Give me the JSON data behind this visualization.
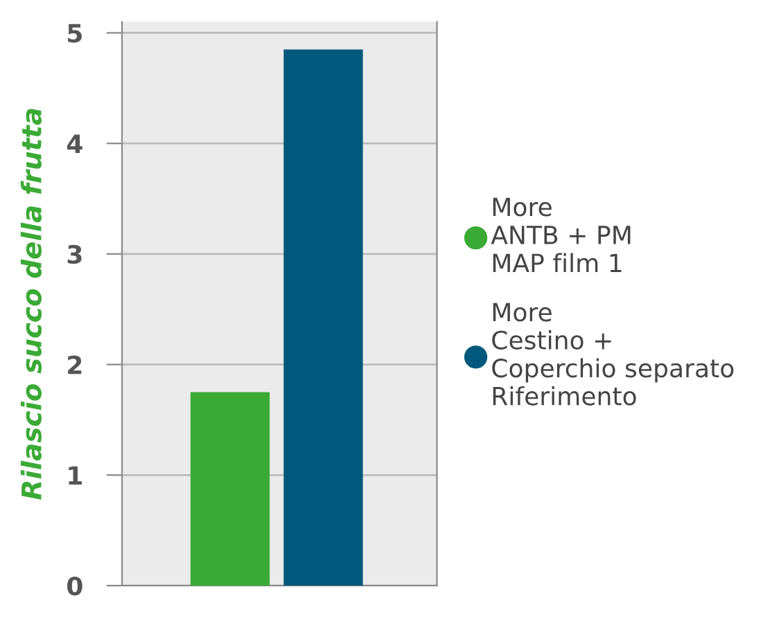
{
  "chart_data": {
    "type": "bar",
    "ylabel": "Rilascio succo della frutta",
    "categories": [
      null,
      null
    ],
    "series": [
      {
        "name": "More\nANTB + PM\nMAP film 1",
        "color": "#3aaa35",
        "values": [
          1.75,
          null
        ]
      },
      {
        "name": "More\nCestino +\nCoperchio separato\nRiferimento",
        "color": "#00587c",
        "values": [
          null,
          4.85
        ]
      }
    ],
    "ylim": [
      0,
      5.1
    ],
    "yticks": [
      0,
      1,
      2,
      3,
      4,
      5
    ],
    "grid": "y",
    "legend": "right"
  }
}
